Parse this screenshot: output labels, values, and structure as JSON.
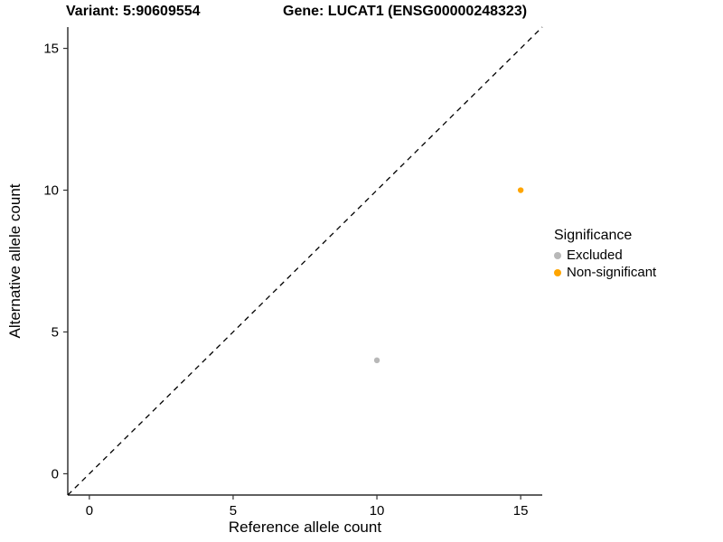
{
  "header": {
    "title_left": "Variant: 5:90609554",
    "title_right": "Gene: LUCAT1 (ENSG00000248323)"
  },
  "legend": {
    "title": "Significance",
    "items": [
      {
        "label": "Excluded",
        "color": "#b8b8b8"
      },
      {
        "label": "Non-significant",
        "color": "#ffa500"
      }
    ]
  },
  "chart_data": {
    "type": "scatter",
    "title": "Variant: 5:90609554 | Gene: LUCAT1 (ENSG00000248323)",
    "xlabel": "Reference allele count",
    "ylabel": "Alternative allele count",
    "xlim": [
      -0.75,
      15.75
    ],
    "ylim": [
      -0.75,
      15.75
    ],
    "xticks": [
      0,
      5,
      10,
      15
    ],
    "yticks": [
      0,
      5,
      10,
      15
    ],
    "grid": false,
    "legend_position": "right",
    "reference_line": {
      "type": "identity",
      "slope": 1,
      "intercept": 0,
      "style": "dashed",
      "color": "#000000"
    },
    "series": [
      {
        "name": "Excluded",
        "color": "#b8b8b8",
        "points": [
          {
            "x": 10,
            "y": 4
          }
        ]
      },
      {
        "name": "Non-significant",
        "color": "#ffa500",
        "points": [
          {
            "x": 15,
            "y": 10
          }
        ]
      }
    ]
  }
}
